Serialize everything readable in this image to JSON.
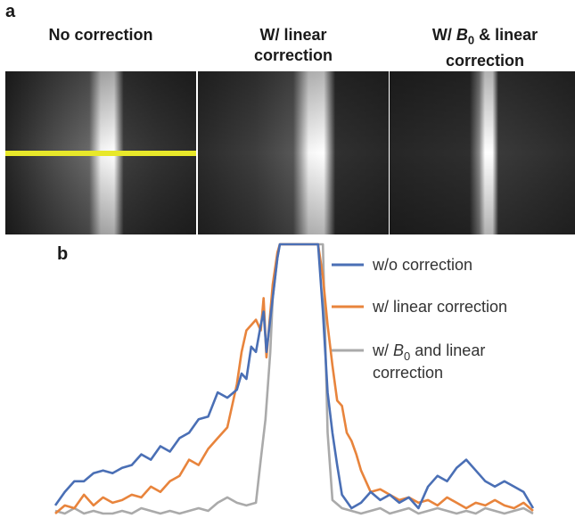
{
  "panel_a": {
    "letter": "a",
    "columns": [
      {
        "line1": "",
        "line2": "No correction"
      },
      {
        "line1": "W/ linear",
        "line2": "correction"
      },
      {
        "line1_pre": "W/ ",
        "line1_sym": "B",
        "line1_sub": "0",
        "line1_post": " & linear",
        "line2": "correction"
      }
    ],
    "profile_line_color": "#e8e82a"
  },
  "panel_b": {
    "letter": "b"
  },
  "chart_data": {
    "type": "line",
    "title": "",
    "xlabel": "",
    "ylabel": "",
    "ylim": [
      0,
      100
    ],
    "xlim": [
      0,
      100
    ],
    "grid": false,
    "legend_placement": "top-right",
    "legend": [
      {
        "label": "w/o correction",
        "color": "#4a6fb5"
      },
      {
        "label": "w/ linear correction",
        "color": "#e8843c"
      },
      {
        "label_pre": "w/ ",
        "label_sym": "B",
        "label_sub": "0",
        "label_post": " and linear",
        "label_line2": "correction",
        "color": "#aaaaaa"
      }
    ],
    "series": [
      {
        "name": "w/o correction",
        "color": "#4a6fb5",
        "x": [
          0,
          2,
          4,
          6,
          8,
          10,
          12,
          14,
          16,
          18,
          20,
          22,
          24,
          26,
          28,
          30,
          32,
          34,
          36,
          38,
          39,
          40,
          41,
          42,
          43,
          43.6,
          44.2,
          45.5,
          46.5,
          47,
          48,
          50,
          52,
          53,
          54,
          55,
          56,
          57,
          58,
          59,
          60,
          62,
          64,
          66,
          68,
          70,
          72,
          74,
          76,
          78,
          80,
          82,
          84,
          86,
          88,
          90,
          92,
          94,
          96,
          98,
          100
        ],
        "y": [
          3,
          8,
          12,
          12,
          15,
          16,
          15,
          17,
          18,
          22,
          20,
          25,
          23,
          28,
          30,
          35,
          36,
          45,
          43,
          46,
          52,
          50,
          62,
          60,
          70,
          75,
          60,
          80,
          95,
          100,
          100,
          100,
          100,
          100,
          100,
          100,
          75,
          45,
          30,
          18,
          7,
          2,
          4,
          8,
          5,
          7,
          4,
          6,
          2,
          10,
          14,
          12,
          17,
          20,
          16,
          12,
          10,
          12,
          10,
          8,
          2
        ]
      },
      {
        "name": "w/ linear correction",
        "color": "#e8843c",
        "x": [
          0,
          2,
          4,
          6,
          8,
          10,
          12,
          14,
          16,
          18,
          20,
          22,
          24,
          26,
          28,
          30,
          32,
          34,
          36,
          38,
          39,
          40,
          41,
          42,
          43,
          43.6,
          44.2,
          45.5,
          46.5,
          47,
          48,
          50,
          52,
          53,
          54,
          55,
          56,
          57,
          58,
          59,
          60,
          61,
          62,
          63,
          64,
          66,
          68,
          70,
          72,
          74,
          76,
          78,
          80,
          82,
          84,
          86,
          88,
          90,
          92,
          94,
          96,
          98,
          100
        ],
        "y": [
          0,
          3,
          2,
          7,
          3,
          6,
          4,
          5,
          7,
          6,
          10,
          8,
          12,
          14,
          20,
          18,
          24,
          28,
          32,
          48,
          60,
          68,
          70,
          72,
          68,
          80,
          58,
          85,
          97,
          100,
          100,
          100,
          100,
          100,
          100,
          100,
          88,
          70,
          55,
          42,
          40,
          30,
          27,
          22,
          16,
          8,
          9,
          7,
          5,
          6,
          4,
          5,
          3,
          6,
          4,
          2,
          4,
          3,
          5,
          3,
          2,
          4,
          1
        ]
      },
      {
        "name": "w/ B0 and linear correction",
        "color": "#aaaaaa",
        "x": [
          0,
          2,
          4,
          6,
          8,
          10,
          12,
          14,
          16,
          18,
          20,
          22,
          24,
          26,
          28,
          30,
          32,
          34,
          36,
          38,
          40,
          42,
          43,
          44,
          45,
          45.5,
          46.5,
          47,
          48,
          50,
          52,
          53,
          54,
          55,
          56,
          57,
          58,
          60,
          62,
          64,
          66,
          68,
          70,
          72,
          74,
          76,
          78,
          80,
          82,
          84,
          86,
          88,
          90,
          92,
          94,
          96,
          98,
          100
        ],
        "y": [
          1,
          0,
          2,
          0,
          1,
          0,
          0,
          1,
          0,
          2,
          1,
          0,
          1,
          0,
          1,
          2,
          1,
          4,
          6,
          4,
          3,
          4,
          20,
          35,
          60,
          80,
          95,
          100,
          100,
          100,
          100,
          100,
          100,
          100,
          100,
          30,
          5,
          2,
          1,
          0,
          1,
          2,
          0,
          1,
          2,
          0,
          1,
          2,
          1,
          0,
          1,
          0,
          2,
          1,
          0,
          1,
          2,
          0
        ]
      }
    ]
  }
}
